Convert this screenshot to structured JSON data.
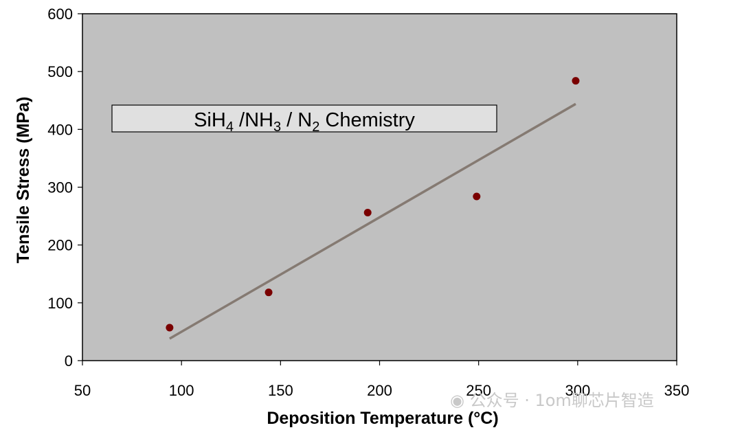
{
  "chart_data": {
    "type": "scatter",
    "xlabel": "Deposition Temperature (°C)",
    "ylabel": "Tensile Stress (MPa)",
    "xlim": [
      50,
      350
    ],
    "ylim": [
      0,
      600
    ],
    "xticks": [
      "50",
      "100",
      "150",
      "200",
      "250",
      "300",
      "350"
    ],
    "yticks": [
      "0",
      "100",
      "200",
      "300",
      "400",
      "500",
      "600"
    ],
    "grid": false,
    "plot_background": "#c0c0c0",
    "series": [
      {
        "marker_color": "#7a0000",
        "points": [
          {
            "x": 94,
            "y": 57
          },
          {
            "x": 144,
            "y": 118
          },
          {
            "x": 194,
            "y": 256
          },
          {
            "x": 249,
            "y": 284
          },
          {
            "x": 299,
            "y": 484
          }
        ]
      }
    ],
    "trendline": {
      "color": "#857a72",
      "points": [
        {
          "x": 94,
          "y": 38
        },
        {
          "x": 299,
          "y": 444
        }
      ]
    },
    "annotation": {
      "parts": [
        {
          "text": "SiH"
        },
        {
          "text": "4",
          "sub": true
        },
        {
          "text": " /NH"
        },
        {
          "text": "3",
          "sub": true
        },
        {
          "text": " / N"
        },
        {
          "text": "2",
          "sub": true
        },
        {
          "text": " Chemistry"
        }
      ]
    }
  },
  "watermark": {
    "icon": "wechat-icon",
    "text": "公众号 · 1om聊芯片智造"
  }
}
